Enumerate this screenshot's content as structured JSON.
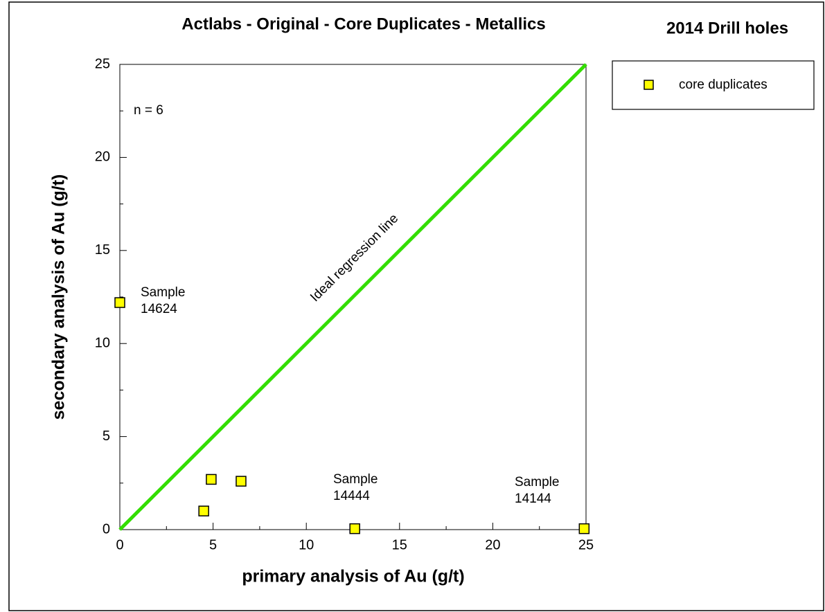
{
  "chart_data": {
    "type": "scatter",
    "title": "Actlabs - Original - Core Duplicates - Metallics",
    "subtitle": "2014 Drill holes",
    "x_label": "primary analysis of Au (g/t)",
    "y_label": "secondary analysis of Au (g/t)",
    "xlim": [
      0,
      25
    ],
    "ylim": [
      0,
      25
    ],
    "xticks": [
      0,
      5,
      10,
      15,
      20,
      25
    ],
    "yticks": [
      0,
      5,
      10,
      15,
      20,
      25
    ],
    "xminorticks": [
      2.5,
      7.5,
      12.5,
      17.5,
      22.5
    ],
    "yminorticks": [
      2.5,
      7.5,
      12.5,
      17.5,
      22.5
    ],
    "series": [
      {
        "name": "core duplicates",
        "color": "#ffff00",
        "x": [
          0,
          4.5,
          4.9,
          6.5,
          12.6,
          24.9
        ],
        "values": [
          12.2,
          1.0,
          2.7,
          2.6,
          0.05,
          0.05
        ]
      }
    ],
    "reference_line": {
      "label": "Ideal regression line",
      "color": "#33dd00",
      "x": [
        0,
        25
      ],
      "values": [
        0,
        25
      ]
    },
    "annotations": [
      {
        "lines": [
          "n = 6"
        ]
      },
      {
        "lines": [
          "Sample",
          "14624"
        ]
      },
      {
        "lines": [
          "Sample",
          "14444"
        ]
      },
      {
        "lines": [
          "Sample",
          "14144"
        ]
      }
    ],
    "legend": "right"
  }
}
